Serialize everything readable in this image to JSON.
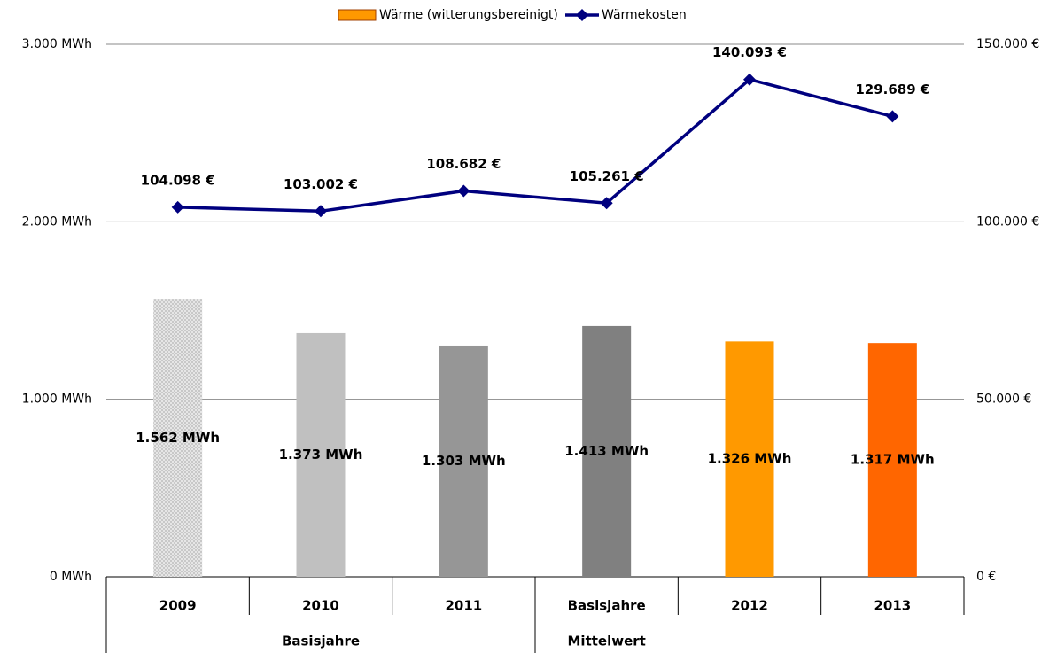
{
  "chart_data": {
    "type": "bar_line",
    "categories": [
      "2009",
      "2010",
      "2011",
      "Basisjahre",
      "2012",
      "2013"
    ],
    "category_groups": [
      {
        "label": "Basisjahre",
        "span": 3
      },
      {
        "label": "Mittelwert",
        "span": 1
      }
    ],
    "series": [
      {
        "name": "Wärme (witterungsbereinigt)",
        "type": "bar",
        "color": "#ff9900",
        "colors": [
          "#d9d9d9",
          "#c0c0c0",
          "#969696",
          "#808080",
          "#ff9900",
          "#ff6600"
        ],
        "values": [
          1562,
          1373,
          1303,
          1413,
          1326,
          1317
        ],
        "value_labels": [
          "1.562 MWh",
          "1.373 MWh",
          "1.303 MWh",
          "1.413 MWh",
          "1.326 MWh",
          "1.317 MWh"
        ]
      },
      {
        "name": "Wärmekosten",
        "type": "line",
        "axis": "y2",
        "color": "#00007f",
        "values": [
          104098,
          103002,
          108682,
          105261,
          140093,
          129689
        ],
        "value_labels": [
          "104.098 €",
          "103.002 €",
          "108.682 €",
          "105.261 €",
          "140.093 €",
          "129.689 €"
        ]
      }
    ],
    "ylim": [
      0,
      3000
    ],
    "yticks": [
      {
        "value": 0,
        "label": "0 MWh"
      },
      {
        "value": 1000,
        "label": "1.000 MWh"
      },
      {
        "value": 2000,
        "label": "2.000 MWh"
      },
      {
        "value": 3000,
        "label": "3.000 MWh"
      }
    ],
    "y2lim": [
      0,
      150000
    ],
    "y2ticks": [
      {
        "value": 0,
        "label": "0 €"
      },
      {
        "value": 50000,
        "label": "50.000 €"
      },
      {
        "value": 100000,
        "label": "100.000 €"
      },
      {
        "value": 150000,
        "label": "150.000 €"
      }
    ],
    "grid": true,
    "legend": "top"
  }
}
